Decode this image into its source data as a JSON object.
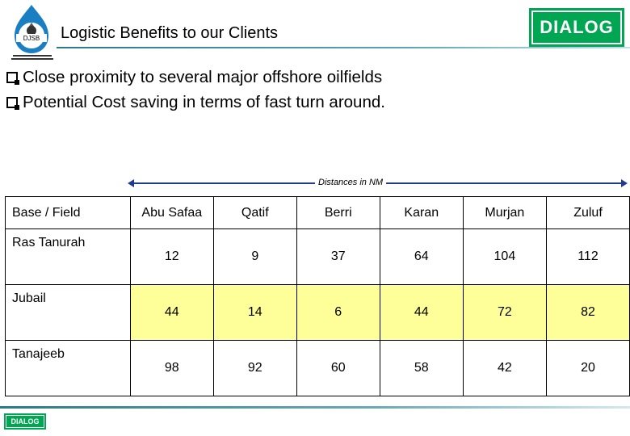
{
  "header": {
    "title": "Logistic Benefits to our Clients",
    "left_logo": {
      "icon": "djsb-logo-icon",
      "text": "DJSB"
    },
    "right_logo_text": "DIALOG"
  },
  "bullets": [
    "Close proximity to several major offshore oilfields",
    "Potential Cost saving in terms of fast turn around."
  ],
  "distance_label": "Distances in NM",
  "table": {
    "headers": [
      "Base / Field",
      "Abu Safaa",
      "Qatif",
      "Berri",
      "Karan",
      "Murjan",
      "Zuluf"
    ],
    "rows": [
      {
        "base": "Ras Tanurah",
        "values": [
          "12",
          "9",
          "37",
          "64",
          "104",
          "112"
        ],
        "highlight": false
      },
      {
        "base": "Jubail",
        "values": [
          "44",
          "14",
          "6",
          "44",
          "72",
          "82"
        ],
        "highlight": true
      },
      {
        "base": "Tanajeeb",
        "values": [
          "98",
          "92",
          "60",
          "58",
          "42",
          "20"
        ],
        "highlight": false
      }
    ]
  },
  "footer": {
    "logo_text": "DIALOG"
  },
  "colors": {
    "brand_green": "#00a651",
    "highlight_yellow": "#ffff99",
    "rule_teal": "#2a7a8a"
  }
}
